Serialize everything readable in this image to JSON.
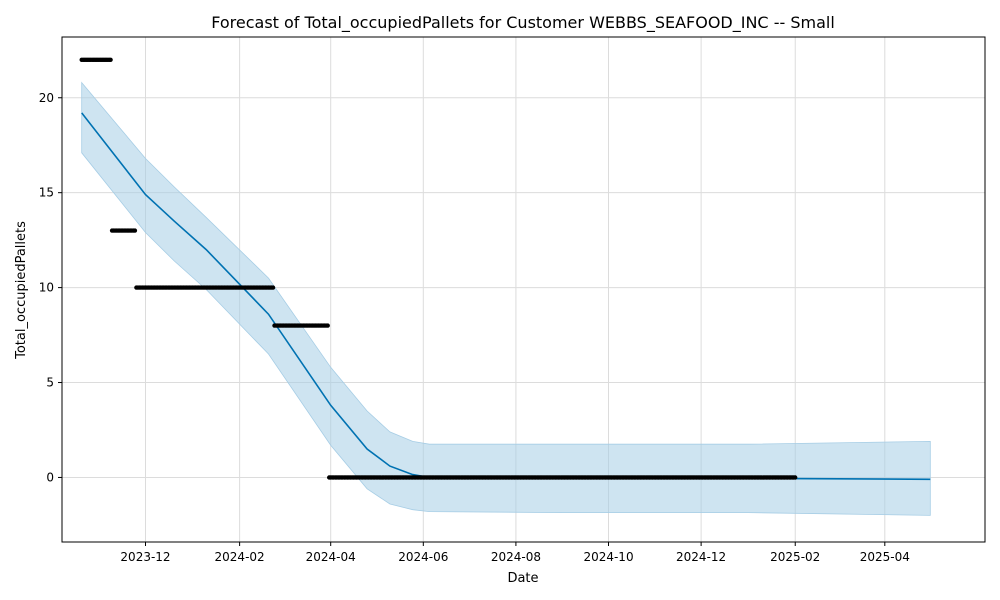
{
  "chart_data": {
    "type": "line",
    "title": "Forecast of Total_occupiedPallets for Customer WEBBS_SEAFOOD_INC -- Small",
    "xlabel": "Date",
    "ylabel": "Total_occupiedPallets",
    "x_axis_type": "date",
    "xlim": [
      "2023-10-07",
      "2025-06-06"
    ],
    "ylim": [
      -3.4,
      23.2
    ],
    "x_ticks": [
      "2023-12",
      "2024-02",
      "2024-04",
      "2024-06",
      "2024-08",
      "2024-10",
      "2024-12",
      "2025-02",
      "2025-04"
    ],
    "y_ticks": [
      0,
      5,
      10,
      15,
      20
    ],
    "grid": true,
    "colors": {
      "forecast_line": "#0072B2",
      "interval_fill": "#a6cde5",
      "observed_points": "#000000",
      "grid": "#dcdcdc"
    },
    "series": [
      {
        "role": "observed",
        "style": "points",
        "segments": [
          {
            "start": "2023-10-20",
            "end": "2023-11-08",
            "value": 22
          },
          {
            "start": "2023-11-09",
            "end": "2023-11-24",
            "value": 13
          },
          {
            "start": "2023-11-25",
            "end": "2024-02-23",
            "value": 10
          },
          {
            "start": "2024-02-24",
            "end": "2024-03-30",
            "value": 8
          },
          {
            "start": "2024-03-31",
            "end": "2025-02-01",
            "value": 0
          }
        ]
      },
      {
        "role": "forecast",
        "style": "line",
        "x": [
          "2023-10-20",
          "2023-12-01",
          "2023-12-20",
          "2024-01-10",
          "2024-02-20",
          "2024-04-01",
          "2024-04-25",
          "2024-05-10",
          "2024-05-25",
          "2024-06-05",
          "2024-09-01",
          "2025-01-01",
          "2025-05-01"
        ],
        "y": [
          19.2,
          14.9,
          13.5,
          12.0,
          8.6,
          3.8,
          1.5,
          0.6,
          0.15,
          0.0,
          -0.05,
          -0.05,
          -0.1
        ],
        "lower": [
          17.1,
          12.9,
          11.4,
          9.9,
          6.5,
          1.7,
          -0.6,
          -1.4,
          -1.7,
          -1.8,
          -1.85,
          -1.85,
          -2.0
        ],
        "upper": [
          20.8,
          16.8,
          15.3,
          13.7,
          10.5,
          5.8,
          3.5,
          2.4,
          1.9,
          1.75,
          1.75,
          1.75,
          1.9
        ]
      }
    ]
  }
}
